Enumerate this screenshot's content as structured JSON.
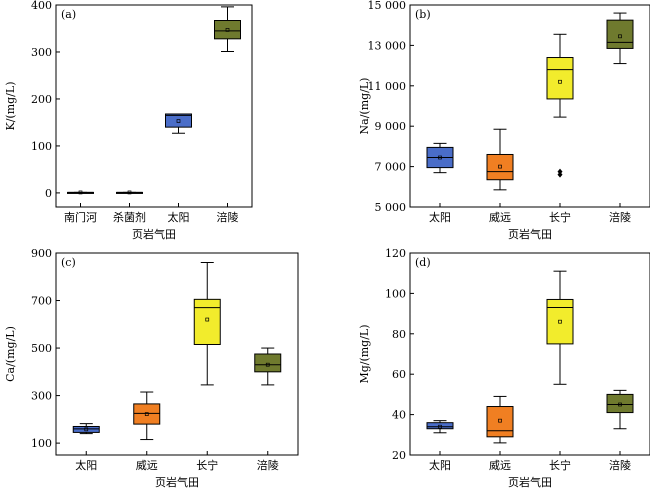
{
  "chart_data": [
    {
      "panel": "(a)",
      "type": "box",
      "ylabel": "K/(mg/L)",
      "xlabel": "页岩气田",
      "ylim": [
        -30,
        400
      ],
      "yticks": [
        0,
        100,
        200,
        300,
        400
      ],
      "categories": [
        "南门河",
        "杀菌剂",
        "太阳",
        "涪陵"
      ],
      "boxes": [
        {
          "category": "南门河",
          "min": 1,
          "q1": 1,
          "median": 1,
          "q3": 1,
          "max": 1,
          "mean": 1,
          "color": "#3a5bbf",
          "outliers": []
        },
        {
          "category": "杀菌剂",
          "min": 1,
          "q1": 1,
          "median": 1,
          "q3": 1,
          "max": 1,
          "mean": 1,
          "color": "#3a5bbf",
          "outliers": []
        },
        {
          "category": "太阳",
          "min": 127,
          "q1": 140,
          "median": 165,
          "q3": 168,
          "max": 168,
          "mean": 153,
          "color": "#4a6dc8",
          "outliers": []
        },
        {
          "category": "涪陵",
          "min": 301,
          "q1": 328,
          "median": 345,
          "q3": 367,
          "max": 396,
          "mean": 347,
          "color": "#6f7a2e",
          "outliers": []
        }
      ]
    },
    {
      "panel": "(b)",
      "type": "box",
      "ylabel": "Na/(mg/L)",
      "xlabel": "页岩气田",
      "ylim": [
        5000,
        15000
      ],
      "yticks": [
        5000,
        7000,
        9000,
        11000,
        13000,
        15000
      ],
      "ytick_labels": [
        "5 000",
        "7 000",
        "9 000",
        "11 000",
        "13 000",
        "15 000"
      ],
      "categories": [
        "太阳",
        "威远",
        "长宁",
        "涪陵"
      ],
      "boxes": [
        {
          "category": "太阳",
          "min": 6700,
          "q1": 6950,
          "median": 7450,
          "q3": 7950,
          "max": 8150,
          "mean": 7450,
          "color": "#4a6dc8",
          "outliers": []
        },
        {
          "category": "威远",
          "min": 5850,
          "q1": 6350,
          "median": 6750,
          "q3": 7600,
          "max": 8850,
          "mean": 7000,
          "color": "#f07f22",
          "outliers": []
        },
        {
          "category": "长宁",
          "min": 9450,
          "q1": 10350,
          "median": 11800,
          "q3": 12400,
          "max": 13550,
          "mean": 11200,
          "color": "#f2ec2c",
          "outliers": [
            6600,
            6750
          ]
        },
        {
          "category": "涪陵",
          "min": 12100,
          "q1": 12850,
          "median": 13150,
          "q3": 14250,
          "max": 14600,
          "mean": 13450,
          "color": "#6f7a2e",
          "outliers": []
        }
      ]
    },
    {
      "panel": "(c)",
      "type": "box",
      "ylabel": "Ca/(mg/L)",
      "xlabel": "页岩气田",
      "ylim": [
        50,
        900
      ],
      "yticks": [
        100,
        300,
        500,
        700,
        900
      ],
      "categories": [
        "太阳",
        "威远",
        "长宁",
        "涪陵"
      ],
      "boxes": [
        {
          "category": "太阳",
          "min": 140,
          "q1": 145,
          "median": 160,
          "q3": 170,
          "max": 182,
          "mean": 158,
          "color": "#4a6dc8",
          "outliers": []
        },
        {
          "category": "威远",
          "min": 115,
          "q1": 180,
          "median": 225,
          "q3": 265,
          "max": 315,
          "mean": 222,
          "color": "#f07f22",
          "outliers": []
        },
        {
          "category": "长宁",
          "min": 345,
          "q1": 515,
          "median": 670,
          "q3": 705,
          "max": 860,
          "mean": 620,
          "color": "#f2ec2c",
          "outliers": []
        },
        {
          "category": "涪陵",
          "min": 345,
          "q1": 400,
          "median": 430,
          "q3": 475,
          "max": 500,
          "mean": 430,
          "color": "#6f7a2e",
          "outliers": []
        }
      ]
    },
    {
      "panel": "(d)",
      "type": "box",
      "ylabel": "Mg/(mg/L)",
      "xlabel": "页岩气田",
      "ylim": [
        20,
        120
      ],
      "yticks": [
        20,
        40,
        60,
        80,
        100,
        120
      ],
      "categories": [
        "太阳",
        "威远",
        "长宁",
        "涪陵"
      ],
      "boxes": [
        {
          "category": "太阳",
          "min": 31,
          "q1": 33,
          "median": 34,
          "q3": 36,
          "max": 37,
          "mean": 34,
          "color": "#4a6dc8",
          "outliers": []
        },
        {
          "category": "威远",
          "min": 26,
          "q1": 29,
          "median": 32,
          "q3": 44,
          "max": 49,
          "mean": 37,
          "color": "#f07f22",
          "outliers": []
        },
        {
          "category": "长宁",
          "min": 55,
          "q1": 75,
          "median": 93,
          "q3": 97,
          "max": 111,
          "mean": 86,
          "color": "#f2ec2c",
          "outliers": []
        },
        {
          "category": "涪陵",
          "min": 33,
          "q1": 41,
          "median": 45,
          "q3": 50,
          "max": 52,
          "mean": 45,
          "color": "#6f7a2e",
          "outliers": []
        }
      ]
    }
  ]
}
